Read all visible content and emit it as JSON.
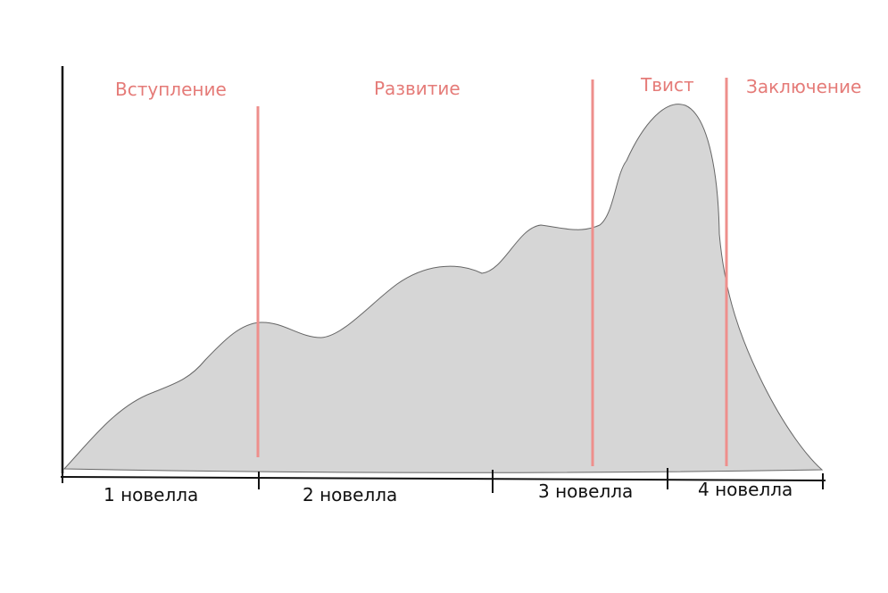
{
  "acts": [
    {
      "id": "intro",
      "label": "Вступление"
    },
    {
      "id": "development",
      "label": "Развитие"
    },
    {
      "id": "twist",
      "label": "Твист"
    },
    {
      "id": "conclusion",
      "label": "Заключение"
    }
  ],
  "novels": [
    {
      "id": "novel-1",
      "label": "1 новелла"
    },
    {
      "id": "novel-2",
      "label": "2 новелла"
    },
    {
      "id": "novel-3",
      "label": "3 новелла"
    },
    {
      "id": "novel-4",
      "label": "4 новелла"
    }
  ],
  "colors": {
    "curve_fill": "#d6d6d6",
    "curve_stroke": "#666666",
    "act_text": "#e57b78",
    "divider": "#ee8f8c",
    "axis": "#111111"
  }
}
